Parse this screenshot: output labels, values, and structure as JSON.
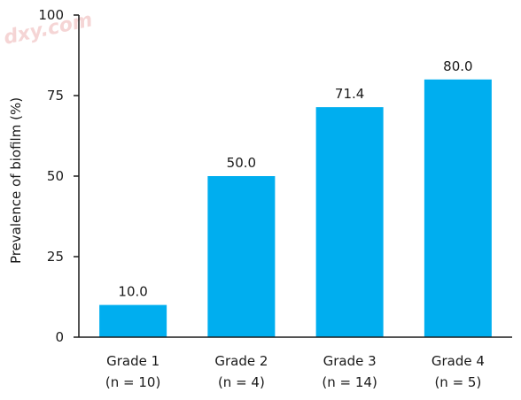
{
  "chart_data": {
    "type": "bar",
    "categories": [
      "Grade 1",
      "Grade 2",
      "Grade 3",
      "Grade 4"
    ],
    "sublabels": [
      "(n = 10)",
      "(n = 4)",
      "(n = 14)",
      "(n = 5)"
    ],
    "values": [
      10.0,
      50.0,
      71.4,
      80.0
    ],
    "value_labels": [
      "10.0",
      "50.0",
      "71.4",
      "80.0"
    ],
    "ylabel": "Prevalence of biofilm (%)",
    "xlabel": "",
    "ylim": [
      0,
      100
    ],
    "yticks": [
      0,
      25,
      50,
      75,
      100
    ],
    "grid": false,
    "bar_color": "#00aeef"
  },
  "watermark": "dxy.com"
}
